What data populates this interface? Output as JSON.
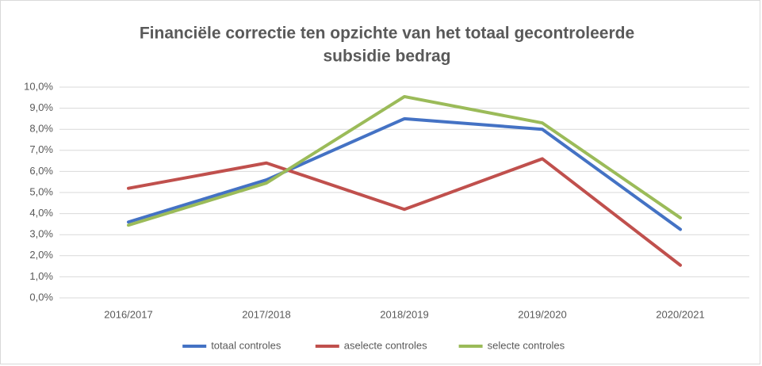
{
  "chart_data": {
    "type": "line",
    "title": [
      "Financiële correctie ten opzichte van het totaal gecontroleerde",
      "subsidie bedrag"
    ],
    "categories": [
      "2016/2017",
      "2017/2018",
      "2018/2019",
      "2019/2020",
      "2020/2021"
    ],
    "series": [
      {
        "name": "totaal controles",
        "color": "#4472c4",
        "values": [
          3.6,
          5.6,
          8.5,
          8.0,
          3.25
        ]
      },
      {
        "name": "aselecte controles",
        "color": "#c0504d",
        "values": [
          5.2,
          6.4,
          4.2,
          6.6,
          1.55
        ]
      },
      {
        "name": "selecte controles",
        "color": "#9bbb59",
        "values": [
          3.45,
          5.45,
          9.55,
          8.3,
          3.8
        ]
      }
    ],
    "ylim": [
      0,
      10
    ],
    "yticks": [
      {
        "value": 0,
        "label": "0,0%"
      },
      {
        "value": 1,
        "label": "1,0%"
      },
      {
        "value": 2,
        "label": "2,0%"
      },
      {
        "value": 3,
        "label": "3,0%"
      },
      {
        "value": 4,
        "label": "4,0%"
      },
      {
        "value": 5,
        "label": "5,0%"
      },
      {
        "value": 6,
        "label": "6,0%"
      },
      {
        "value": 7,
        "label": "7,0%"
      },
      {
        "value": 8,
        "label": "8,0%"
      },
      {
        "value": 9,
        "label": "9,0%"
      },
      {
        "value": 10,
        "label": "10,0%"
      }
    ],
    "grid": true,
    "legend": "bottom"
  }
}
